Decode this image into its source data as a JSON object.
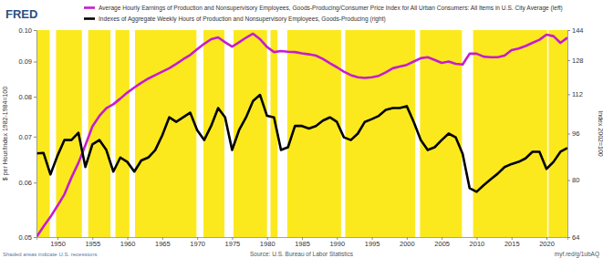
{
  "chart_data": {
    "type": "line",
    "logo": "FRED",
    "ylabel": "$ per Hour/Index 1982-1984=100",
    "y2label": "Index 2002=100",
    "source": "Source: U.S. Bureau of Labor Statistics",
    "link": "myf.red/g/1ubAQ",
    "note": "Shaded areas indicate U.S. recessions",
    "log": "y",
    "grid": false,
    "x": [
      1947,
      1948,
      1949,
      1950,
      1951,
      1952,
      1953,
      1954,
      1955,
      1956,
      1957,
      1958,
      1959,
      1960,
      1961,
      1962,
      1963,
      1964,
      1965,
      1966,
      1967,
      1968,
      1969,
      1970,
      1971,
      1972,
      1973,
      1974,
      1975,
      1976,
      1977,
      1978,
      1979,
      1980,
      1981,
      1982,
      1983,
      1984,
      1985,
      1986,
      1987,
      1988,
      1989,
      1990,
      1991,
      1992,
      1993,
      1994,
      1995,
      1996,
      1997,
      1998,
      1999,
      2000,
      2001,
      2002,
      2003,
      2004,
      2005,
      2006,
      2007,
      2008,
      2009,
      2010,
      2011,
      2012,
      2013,
      2014,
      2015,
      2016,
      2017,
      2018,
      2019,
      2020,
      2021,
      2022,
      2023
    ],
    "xlim": [
      1947,
      2023
    ],
    "xticks": [
      1950,
      1955,
      1960,
      1965,
      1970,
      1975,
      1980,
      1985,
      1990,
      1995,
      2000,
      2005,
      2010,
      2015,
      2020
    ],
    "ylim": [
      0.05,
      0.1
    ],
    "yticks": [
      0.05,
      0.06,
      0.07,
      0.08,
      0.09,
      {
        "value": 0.1,
        "label": "0.10"
      }
    ],
    "y2lim": [
      64,
      144
    ],
    "y2ticks": [
      64,
      80,
      96,
      112,
      128,
      144
    ],
    "recessions": [
      [
        1948.9,
        1949.8
      ],
      [
        1953.5,
        1954.4
      ],
      [
        1957.6,
        1958.3
      ],
      [
        1960.3,
        1961.1
      ],
      [
        1969.9,
        1970.9
      ],
      [
        1973.9,
        1975.2
      ],
      [
        1980.0,
        1980.5
      ],
      [
        1981.5,
        1982.9
      ],
      [
        1990.6,
        1991.2
      ],
      [
        2001.2,
        2001.9
      ],
      [
        2007.9,
        2009.5
      ],
      [
        2020.1,
        2020.3
      ]
    ],
    "series": [
      {
        "name": "Average Hourly Earnings of Production and Nonsupervisory Employees, Goods-Producing/Consumer Price Index for All Urban Consumers: All Items in U.S. City Average (left)",
        "color": "#c61ccf",
        "values": [
          0.05,
          0.0518,
          0.0535,
          0.0555,
          0.0577,
          0.061,
          0.0641,
          0.068,
          0.0724,
          0.075,
          0.077,
          0.078,
          0.0795,
          0.0811,
          0.0825,
          0.0838,
          0.085,
          0.086,
          0.087,
          0.088,
          0.0893,
          0.0907,
          0.092,
          0.0938,
          0.0955,
          0.097,
          0.0976,
          0.096,
          0.0946,
          0.096,
          0.0975,
          0.0988,
          0.097,
          0.0945,
          0.0929,
          0.0932,
          0.093,
          0.0929,
          0.0925,
          0.0922,
          0.0918,
          0.0908,
          0.0895,
          0.0883,
          0.087,
          0.086,
          0.0854,
          0.0852,
          0.0854,
          0.0858,
          0.0868,
          0.088,
          0.0885,
          0.089,
          0.09,
          0.091,
          0.0913,
          0.0905,
          0.0896,
          0.09,
          0.0893,
          0.0891,
          0.0924,
          0.0924,
          0.0915,
          0.0913,
          0.0913,
          0.0918,
          0.0935,
          0.094,
          0.0948,
          0.0958,
          0.0968,
          0.0985,
          0.098,
          0.0958,
          0.0975
        ]
      },
      {
        "name": "Indexes of Aggregate Weekly Hours of Production and Nonsupervisory Employees, Goods-Producing (right)",
        "color": "#000000",
        "axis": "y2",
        "values": [
          88.8,
          89.0,
          81.8,
          88.0,
          93.6,
          93.6,
          96.3,
          84.2,
          92.0,
          93.6,
          90.0,
          82.7,
          87.4,
          85.9,
          82.7,
          86.4,
          87.4,
          90.0,
          95.3,
          102.3,
          100.5,
          102.3,
          104.2,
          97.3,
          93.6,
          98.9,
          106.1,
          102.3,
          90.0,
          97.3,
          102.3,
          109.1,
          111.7,
          102.9,
          102.3,
          90.0,
          91.0,
          98.9,
          98.9,
          97.9,
          98.9,
          101.0,
          102.3,
          100.5,
          94.6,
          93.6,
          96.0,
          100.5,
          101.6,
          102.9,
          105.3,
          106.1,
          106.1,
          106.9,
          100.5,
          93.6,
          90.0,
          91.0,
          93.6,
          96.0,
          94.6,
          88.7,
          77.5,
          76.4,
          78.4,
          80.2,
          82.0,
          84.2,
          85.2,
          85.9,
          87.1,
          89.4,
          89.4,
          83.6,
          85.9,
          89.4,
          90.7
        ]
      }
    ]
  }
}
